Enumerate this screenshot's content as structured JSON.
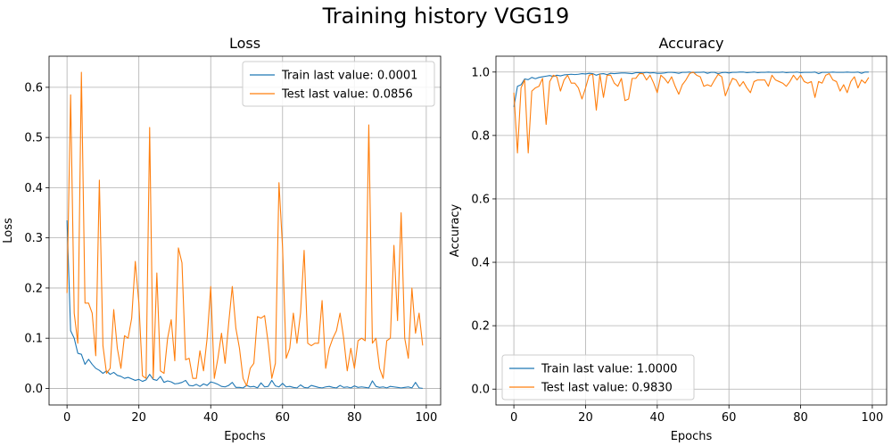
{
  "title": "Training history VGG19",
  "chart_data": [
    {
      "type": "line",
      "title": "Loss",
      "xlabel": "Epochs",
      "ylabel": "Loss",
      "xlim": [
        -5,
        104
      ],
      "ylim": [
        -0.033,
        0.662
      ],
      "xticks": [
        0,
        20,
        40,
        60,
        80,
        100
      ],
      "yticks": [
        0.0,
        0.1,
        0.2,
        0.3,
        0.4,
        0.5,
        0.6
      ],
      "ytick_labels": [
        "0.0",
        "0.1",
        "0.2",
        "0.3",
        "0.4",
        "0.5",
        "0.6"
      ],
      "legend_loc": "upper right",
      "grid": true,
      "series": [
        {
          "name": "Train last value: 0.0001",
          "color": "#1f77b4",
          "values": [
            0.335,
            0.115,
            0.1,
            0.07,
            0.068,
            0.048,
            0.058,
            0.048,
            0.04,
            0.036,
            0.03,
            0.035,
            0.028,
            0.032,
            0.026,
            0.024,
            0.02,
            0.022,
            0.019,
            0.016,
            0.018,
            0.014,
            0.017,
            0.028,
            0.018,
            0.016,
            0.024,
            0.012,
            0.015,
            0.013,
            0.009,
            0.01,
            0.012,
            0.016,
            0.006,
            0.005,
            0.008,
            0.004,
            0.009,
            0.006,
            0.013,
            0.011,
            0.008,
            0.004,
            0.003,
            0.006,
            0.012,
            0.002,
            0.002,
            0.001,
            0.006,
            0.003,
            0.004,
            0.001,
            0.011,
            0.003,
            0.004,
            0.016,
            0.005,
            0.003,
            0.01,
            0.003,
            0.004,
            0.002,
            0.001,
            0.007,
            0.002,
            0.001,
            0.006,
            0.004,
            0.002,
            0.001,
            0.003,
            0.004,
            0.002,
            0.001,
            0.006,
            0.002,
            0.003,
            0.001,
            0.005,
            0.002,
            0.003,
            0.002,
            0.001,
            0.015,
            0.004,
            0.002,
            0.003,
            0.001,
            0.004,
            0.003,
            0.002,
            0.001,
            0.002,
            0.003,
            0.001,
            0.012,
            0.001,
            0.0001
          ]
        },
        {
          "name": "Test last value: 0.0856",
          "color": "#ff7f0e",
          "values": [
            0.19,
            0.585,
            0.15,
            0.09,
            0.63,
            0.17,
            0.17,
            0.15,
            0.065,
            0.415,
            0.085,
            0.03,
            0.04,
            0.157,
            0.08,
            0.04,
            0.105,
            0.1,
            0.14,
            0.253,
            0.17,
            0.025,
            0.02,
            0.52,
            0.02,
            0.23,
            0.035,
            0.03,
            0.1,
            0.137,
            0.055,
            0.28,
            0.25,
            0.057,
            0.06,
            0.02,
            0.02,
            0.075,
            0.035,
            0.1,
            0.203,
            0.02,
            0.06,
            0.11,
            0.05,
            0.13,
            0.203,
            0.12,
            0.08,
            0.02,
            0.005,
            0.04,
            0.05,
            0.143,
            0.14,
            0.145,
            0.09,
            0.02,
            0.05,
            0.41,
            0.28,
            0.06,
            0.08,
            0.15,
            0.09,
            0.15,
            0.275,
            0.09,
            0.085,
            0.09,
            0.09,
            0.175,
            0.04,
            0.08,
            0.1,
            0.115,
            0.15,
            0.1,
            0.035,
            0.08,
            0.04,
            0.095,
            0.1,
            0.095,
            0.525,
            0.09,
            0.1,
            0.04,
            0.02,
            0.095,
            0.1,
            0.285,
            0.135,
            0.35,
            0.1,
            0.06,
            0.2,
            0.11,
            0.15,
            0.0856
          ]
        }
      ]
    },
    {
      "type": "line",
      "title": "Accuracy",
      "xlabel": "Epochs",
      "ylabel": "Accuracy",
      "xlim": [
        -5,
        104
      ],
      "ylim": [
        -0.05,
        1.05
      ],
      "xticks": [
        0,
        20,
        40,
        60,
        80,
        100
      ],
      "yticks": [
        0.0,
        0.2,
        0.4,
        0.6,
        0.8,
        1.0
      ],
      "ytick_labels": [
        "0.0",
        "0.2",
        "0.4",
        "0.6",
        "0.8",
        "1.0"
      ],
      "legend_loc": "lower left",
      "grid": true,
      "series": [
        {
          "name": "Train last value: 1.0000",
          "color": "#1f77b4",
          "values": [
            0.89,
            0.955,
            0.96,
            0.978,
            0.976,
            0.983,
            0.979,
            0.983,
            0.985,
            0.987,
            0.989,
            0.986,
            0.99,
            0.988,
            0.991,
            0.992,
            0.993,
            0.992,
            0.993,
            0.995,
            0.994,
            0.996,
            0.995,
            0.99,
            0.994,
            0.995,
            0.992,
            0.996,
            0.995,
            0.996,
            0.997,
            0.997,
            0.996,
            0.995,
            0.998,
            0.998,
            0.997,
            0.999,
            0.997,
            0.998,
            0.996,
            0.996,
            0.997,
            0.999,
            0.999,
            0.998,
            0.996,
            0.999,
            0.999,
            1.0,
            0.998,
            0.999,
            0.999,
            1.0,
            0.996,
            0.999,
            0.999,
            0.995,
            0.998,
            0.999,
            0.997,
            0.999,
            0.999,
            1.0,
            1.0,
            0.998,
            0.999,
            1.0,
            0.998,
            0.999,
            0.999,
            1.0,
            0.999,
            0.999,
            0.999,
            1.0,
            0.998,
            0.999,
            0.999,
            1.0,
            0.998,
            0.999,
            0.999,
            0.999,
            1.0,
            0.995,
            0.999,
            0.999,
            0.999,
            1.0,
            0.999,
            0.999,
            0.999,
            1.0,
            0.999,
            0.999,
            1.0,
            0.996,
            1.0,
            1.0
          ]
        },
        {
          "name": "Test last value: 0.9830",
          "color": "#ff7f0e",
          "values": [
            0.935,
            0.745,
            0.95,
            0.975,
            0.745,
            0.94,
            0.95,
            0.955,
            0.98,
            0.835,
            0.97,
            0.99,
            0.985,
            0.94,
            0.975,
            0.99,
            0.965,
            0.965,
            0.95,
            0.915,
            0.95,
            0.99,
            0.993,
            0.88,
            0.993,
            0.92,
            0.99,
            0.99,
            0.965,
            0.955,
            0.98,
            0.91,
            0.915,
            0.98,
            0.98,
            0.995,
            0.995,
            0.975,
            0.99,
            0.965,
            0.935,
            0.99,
            0.98,
            0.965,
            0.985,
            0.955,
            0.93,
            0.96,
            0.975,
            0.995,
            1.0,
            0.99,
            0.985,
            0.955,
            0.96,
            0.955,
            0.975,
            0.993,
            0.985,
            0.925,
            0.955,
            0.98,
            0.975,
            0.955,
            0.97,
            0.95,
            0.935,
            0.97,
            0.975,
            0.975,
            0.975,
            0.955,
            0.99,
            0.975,
            0.97,
            0.965,
            0.955,
            0.97,
            0.99,
            0.975,
            0.99,
            0.97,
            0.965,
            0.97,
            0.92,
            0.97,
            0.965,
            0.99,
            0.995,
            0.975,
            0.97,
            0.94,
            0.96,
            0.935,
            0.97,
            0.985,
            0.95,
            0.975,
            0.965,
            0.983
          ]
        }
      ]
    }
  ]
}
